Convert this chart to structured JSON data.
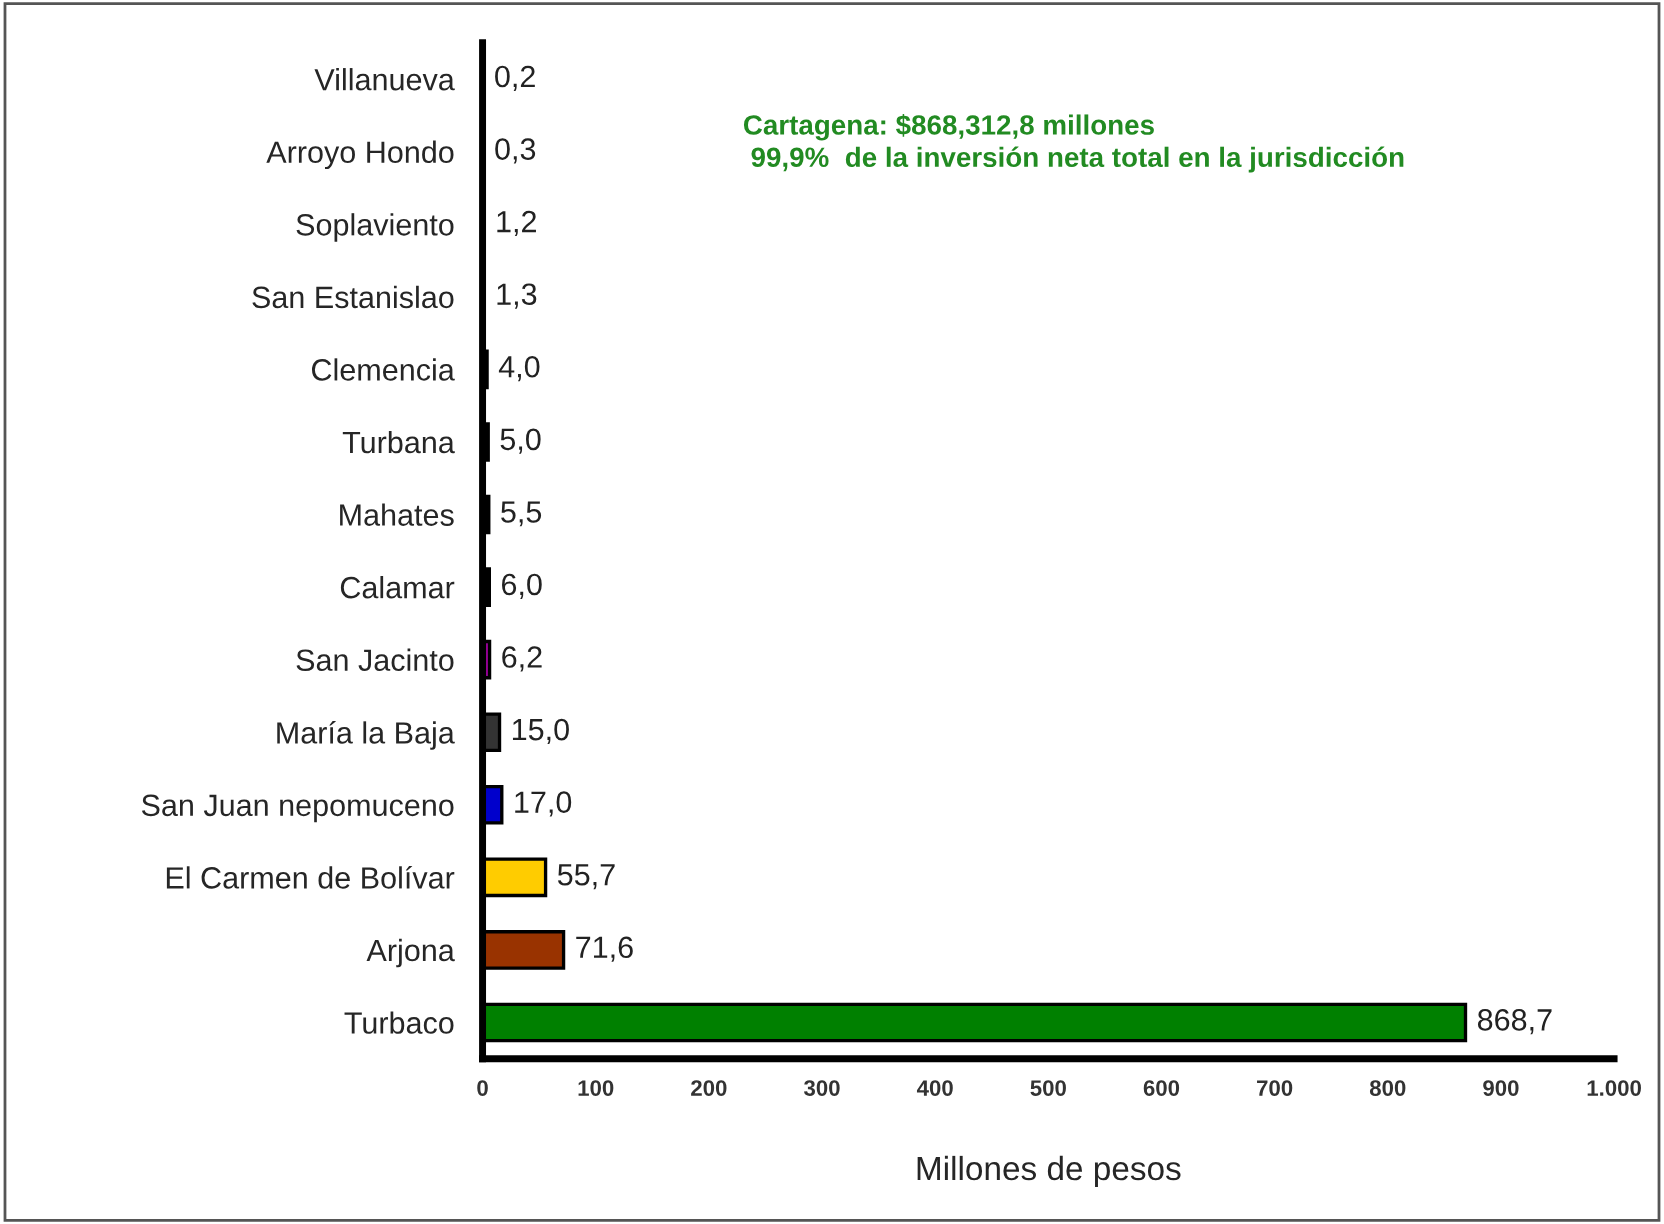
{
  "chart_data": {
    "type": "bar",
    "orientation": "horizontal",
    "xlabel": "Millones de pesos",
    "categories": [
      "Villanueva",
      "Arroyo Hondo",
      "Soplaviento",
      "San Estanislao",
      "Clemencia",
      "Turbana",
      "Mahates",
      "Calamar",
      "San Jacinto",
      "María la Baja",
      "San Juan nepomuceno",
      "El Carmen de Bolívar",
      "Arjona",
      "Turbaco"
    ],
    "values": [
      0.2,
      0.3,
      1.2,
      1.3,
      4.0,
      5.0,
      5.5,
      6.0,
      6.2,
      15.0,
      17.0,
      55.7,
      71.6,
      868.7
    ],
    "value_labels": [
      "0,2",
      "0,3",
      "1,2",
      "1,3",
      "4,0",
      "5,0",
      "5,5",
      "6,0",
      "6,2",
      "15,0",
      "17,0",
      "55,7",
      "71,6",
      "868,7"
    ],
    "colors": [
      "#000000",
      "#000000",
      "#000000",
      "#000000",
      "#000000",
      "#000000",
      "#000000",
      "#000000",
      "#990099",
      "#333333",
      "#0000cc",
      "#ffcc00",
      "#993300",
      "#008000"
    ],
    "xlim": [
      0,
      1000
    ],
    "xticks": [
      0,
      100,
      200,
      300,
      400,
      500,
      600,
      700,
      800,
      900,
      {
        "value": 1000,
        "label": "1.000"
      }
    ],
    "annotations": [
      "Cartagena: $868,312,8 millones",
      " 99,9%  de la inversión neta total en la jurisdicción"
    ],
    "grid": false
  }
}
